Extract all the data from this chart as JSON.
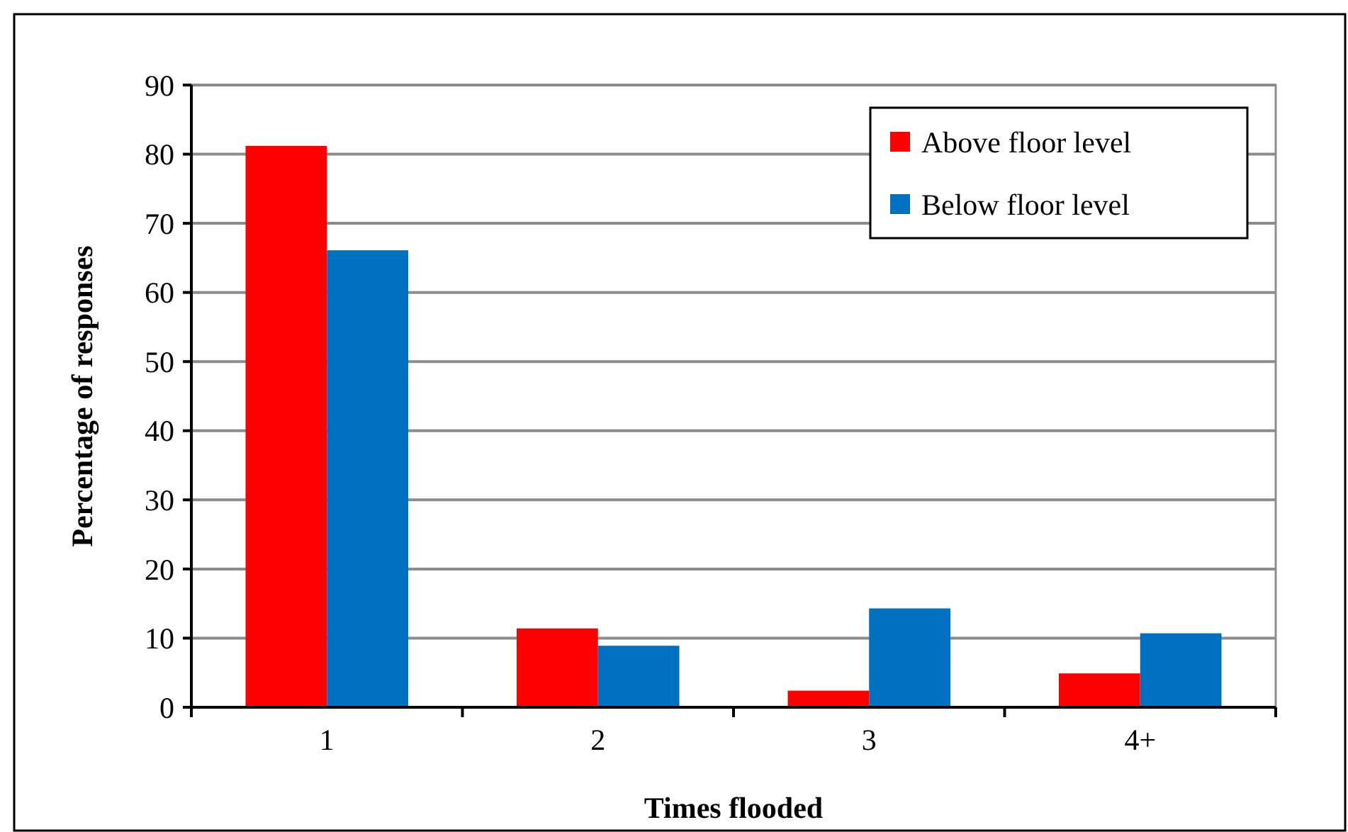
{
  "chart_data": {
    "type": "bar",
    "xlabel": "Times flooded",
    "ylabel": "Percentage of responses",
    "categories": [
      "1",
      "2",
      "3",
      "4+"
    ],
    "series": [
      {
        "name": "Above floor level",
        "color": "#ff0000",
        "values": [
          81.2,
          11.4,
          2.4,
          4.9
        ]
      },
      {
        "name": "Below floor level",
        "color": "#0070c0",
        "values": [
          66.1,
          8.9,
          14.3,
          10.7
        ]
      }
    ],
    "ylim": [
      0,
      90
    ],
    "yticks": [
      0,
      10,
      20,
      30,
      40,
      50,
      60,
      70,
      80,
      90
    ],
    "grid": "y",
    "legend": "top right"
  }
}
